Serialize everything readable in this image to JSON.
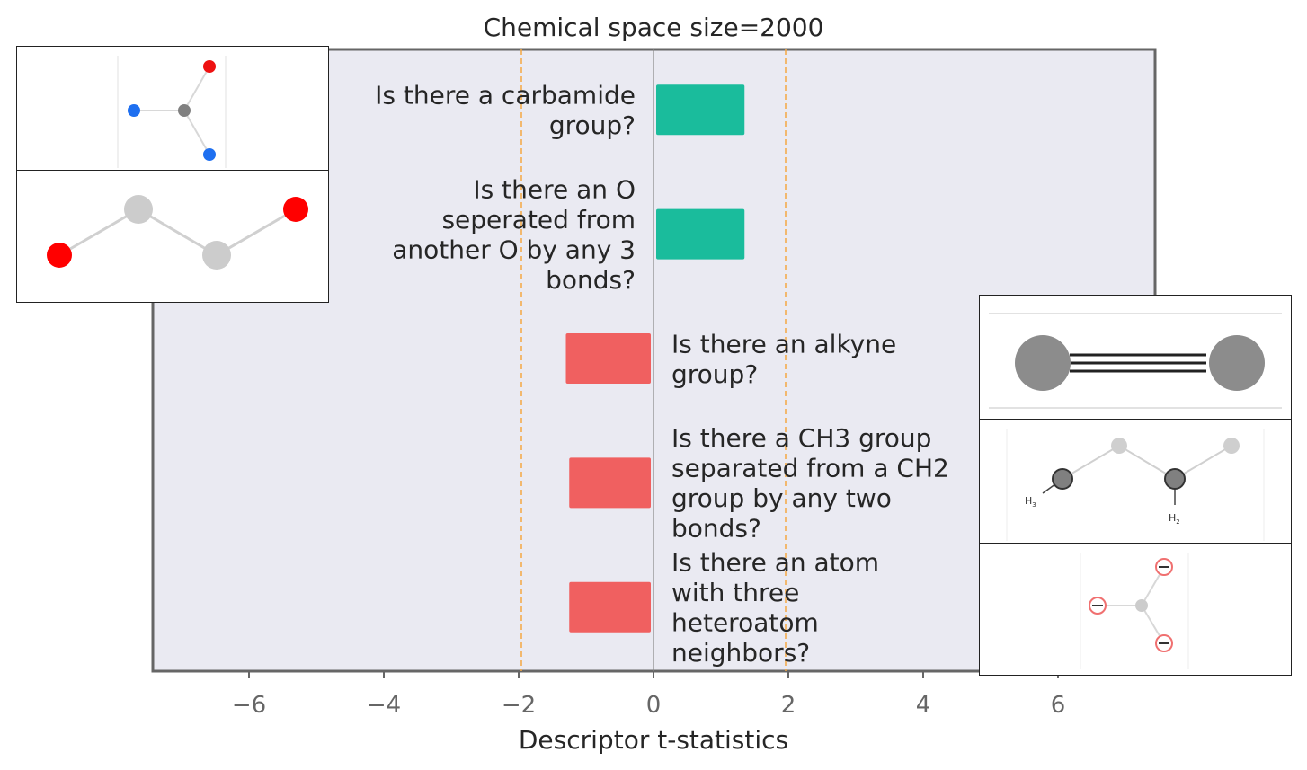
{
  "chart_data": {
    "type": "bar",
    "orientation": "horizontal",
    "title": "Chemical space size=2000",
    "xlabel": "Descriptor t-statistics",
    "ylabel": "",
    "xlim": [
      -7.5,
      7.5
    ],
    "xticks": [
      -6,
      -4,
      -2,
      0,
      2,
      4,
      6
    ],
    "xtick_labels": [
      "−6",
      "−4",
      "−2",
      "0",
      "2",
      "4",
      "6"
    ],
    "reference_lines": [
      -1.96,
      1.96
    ],
    "grid": false,
    "bars": [
      {
        "label_lines": [
          "Is there a carbamide",
          "group?"
        ],
        "value": 1.35,
        "color": "#1abc9c"
      },
      {
        "label_lines": [
          "Is there an O",
          "seperated from",
          "another O by any 3",
          "bonds?"
        ],
        "value": 1.35,
        "color": "#1abc9c"
      },
      {
        "label_lines": [
          "Is there an alkyne",
          "group?"
        ],
        "value": -1.3,
        "color": "#f06060"
      },
      {
        "label_lines": [
          "Is there a CH3 group",
          "separated from a CH2",
          "group by any two",
          "bonds?"
        ],
        "value": -1.25,
        "color": "#f06060"
      },
      {
        "label_lines": [
          "Is there an atom",
          "with three",
          "heteroatom",
          "neighbors?"
        ],
        "value": -1.25,
        "color": "#f06060"
      }
    ]
  },
  "colors": {
    "plot_background": "#eaeaf2",
    "positive_bar": "#1abc9c",
    "negative_bar": "#f06060",
    "reference_line": "#f5a742",
    "zero_line": "#888888",
    "frame": "#666666"
  },
  "insets": [
    {
      "name": "carbamide-molecule-image",
      "icon": "carbamide-structure-icon"
    },
    {
      "name": "o-o-three-bond-molecule-image",
      "icon": "oxygen-chain-structure-icon"
    },
    {
      "name": "alkyne-molecule-image",
      "icon": "alkyne-triple-bond-icon"
    },
    {
      "name": "ch3-ch2-molecule-image",
      "icon": "ch3-ch2-chain-icon"
    },
    {
      "name": "three-heteroatom-molecule-image",
      "icon": "trivalent-heteroatom-icon"
    }
  ],
  "inset_labels": {
    "h3": "H",
    "h3_sub": "3",
    "h2": "H",
    "h2_sub": "2"
  }
}
